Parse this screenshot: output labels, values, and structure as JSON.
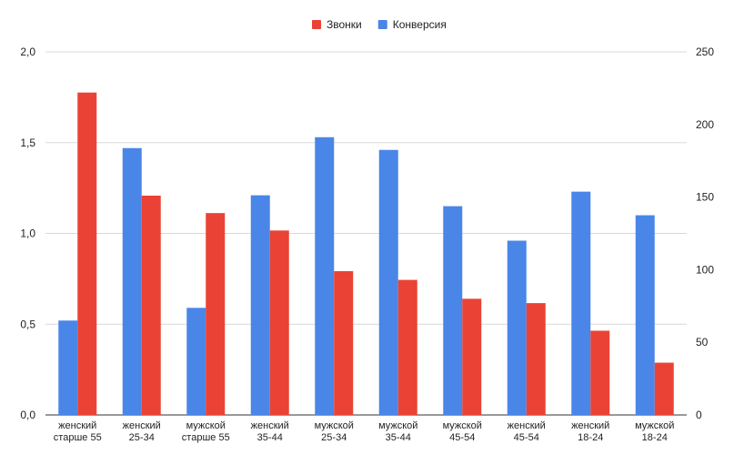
{
  "chart_data": {
    "type": "bar",
    "categories": [
      [
        "женский",
        "старше 55"
      ],
      [
        "женский",
        "25-34"
      ],
      [
        "мужской",
        "старше 55"
      ],
      [
        "женский",
        "35-44"
      ],
      [
        "мужской",
        "25-34"
      ],
      [
        "мужской",
        "35-44"
      ],
      [
        "мужской",
        "45-54"
      ],
      [
        "женский",
        "45-54"
      ],
      [
        "женский",
        "18-24"
      ],
      [
        "мужской",
        "18-24"
      ]
    ],
    "series": [
      {
        "name": "Конверсия",
        "axis": "left",
        "color": "#4a86e8",
        "values": [
          0.52,
          1.47,
          0.59,
          1.21,
          1.53,
          1.46,
          1.15,
          0.96,
          1.23,
          1.1
        ]
      },
      {
        "name": "Звонки",
        "axis": "right",
        "color": "#ea4335",
        "values": [
          222,
          151,
          139,
          127,
          99,
          93,
          80,
          77,
          58,
          36
        ]
      }
    ],
    "legend": {
      "position": "top",
      "items": [
        {
          "name": "Звонки",
          "color": "#ea4335"
        },
        {
          "name": "Конверсия",
          "color": "#4a86e8"
        }
      ]
    },
    "y_left": {
      "ylim": [
        0,
        2
      ],
      "ticks": [
        0,
        0.5,
        1.0,
        1.5,
        2.0
      ],
      "tick_labels": [
        "0,0",
        "0,5",
        "1,0",
        "1,5",
        "2,0"
      ]
    },
    "y_right": {
      "ylim": [
        0,
        250
      ],
      "ticks": [
        0,
        50,
        100,
        150,
        200,
        250
      ],
      "tick_labels": [
        "0",
        "50",
        "100",
        "150",
        "200",
        "250"
      ]
    },
    "grid": true,
    "gridline_color": "#d9d9d9"
  }
}
